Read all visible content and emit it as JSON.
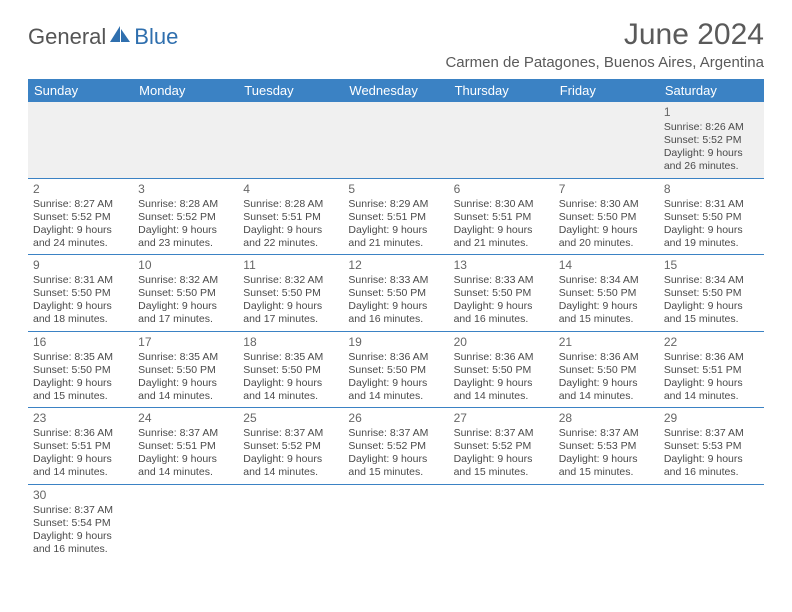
{
  "logo": {
    "text1": "General",
    "text2": "Blue"
  },
  "title": "June 2024",
  "subtitle": "Carmen de Patagones, Buenos Aires, Argentina",
  "colors": {
    "header_bg": "#3b82c4",
    "header_text": "#ffffff",
    "cell_border": "#3b82c4",
    "text": "#4a4a4a",
    "blank_bg": "#f0f0f0",
    "page_bg": "#ffffff"
  },
  "weekdays": [
    "Sunday",
    "Monday",
    "Tuesday",
    "Wednesday",
    "Thursday",
    "Friday",
    "Saturday"
  ],
  "weeks": [
    [
      null,
      null,
      null,
      null,
      null,
      null,
      {
        "day": "1",
        "sunrise": "Sunrise: 8:26 AM",
        "sunset": "Sunset: 5:52 PM",
        "daylight1": "Daylight: 9 hours",
        "daylight2": "and 26 minutes."
      }
    ],
    [
      {
        "day": "2",
        "sunrise": "Sunrise: 8:27 AM",
        "sunset": "Sunset: 5:52 PM",
        "daylight1": "Daylight: 9 hours",
        "daylight2": "and 24 minutes."
      },
      {
        "day": "3",
        "sunrise": "Sunrise: 8:28 AM",
        "sunset": "Sunset: 5:52 PM",
        "daylight1": "Daylight: 9 hours",
        "daylight2": "and 23 minutes."
      },
      {
        "day": "4",
        "sunrise": "Sunrise: 8:28 AM",
        "sunset": "Sunset: 5:51 PM",
        "daylight1": "Daylight: 9 hours",
        "daylight2": "and 22 minutes."
      },
      {
        "day": "5",
        "sunrise": "Sunrise: 8:29 AM",
        "sunset": "Sunset: 5:51 PM",
        "daylight1": "Daylight: 9 hours",
        "daylight2": "and 21 minutes."
      },
      {
        "day": "6",
        "sunrise": "Sunrise: 8:30 AM",
        "sunset": "Sunset: 5:51 PM",
        "daylight1": "Daylight: 9 hours",
        "daylight2": "and 21 minutes."
      },
      {
        "day": "7",
        "sunrise": "Sunrise: 8:30 AM",
        "sunset": "Sunset: 5:50 PM",
        "daylight1": "Daylight: 9 hours",
        "daylight2": "and 20 minutes."
      },
      {
        "day": "8",
        "sunrise": "Sunrise: 8:31 AM",
        "sunset": "Sunset: 5:50 PM",
        "daylight1": "Daylight: 9 hours",
        "daylight2": "and 19 minutes."
      }
    ],
    [
      {
        "day": "9",
        "sunrise": "Sunrise: 8:31 AM",
        "sunset": "Sunset: 5:50 PM",
        "daylight1": "Daylight: 9 hours",
        "daylight2": "and 18 minutes."
      },
      {
        "day": "10",
        "sunrise": "Sunrise: 8:32 AM",
        "sunset": "Sunset: 5:50 PM",
        "daylight1": "Daylight: 9 hours",
        "daylight2": "and 17 minutes."
      },
      {
        "day": "11",
        "sunrise": "Sunrise: 8:32 AM",
        "sunset": "Sunset: 5:50 PM",
        "daylight1": "Daylight: 9 hours",
        "daylight2": "and 17 minutes."
      },
      {
        "day": "12",
        "sunrise": "Sunrise: 8:33 AM",
        "sunset": "Sunset: 5:50 PM",
        "daylight1": "Daylight: 9 hours",
        "daylight2": "and 16 minutes."
      },
      {
        "day": "13",
        "sunrise": "Sunrise: 8:33 AM",
        "sunset": "Sunset: 5:50 PM",
        "daylight1": "Daylight: 9 hours",
        "daylight2": "and 16 minutes."
      },
      {
        "day": "14",
        "sunrise": "Sunrise: 8:34 AM",
        "sunset": "Sunset: 5:50 PM",
        "daylight1": "Daylight: 9 hours",
        "daylight2": "and 15 minutes."
      },
      {
        "day": "15",
        "sunrise": "Sunrise: 8:34 AM",
        "sunset": "Sunset: 5:50 PM",
        "daylight1": "Daylight: 9 hours",
        "daylight2": "and 15 minutes."
      }
    ],
    [
      {
        "day": "16",
        "sunrise": "Sunrise: 8:35 AM",
        "sunset": "Sunset: 5:50 PM",
        "daylight1": "Daylight: 9 hours",
        "daylight2": "and 15 minutes."
      },
      {
        "day": "17",
        "sunrise": "Sunrise: 8:35 AM",
        "sunset": "Sunset: 5:50 PM",
        "daylight1": "Daylight: 9 hours",
        "daylight2": "and 14 minutes."
      },
      {
        "day": "18",
        "sunrise": "Sunrise: 8:35 AM",
        "sunset": "Sunset: 5:50 PM",
        "daylight1": "Daylight: 9 hours",
        "daylight2": "and 14 minutes."
      },
      {
        "day": "19",
        "sunrise": "Sunrise: 8:36 AM",
        "sunset": "Sunset: 5:50 PM",
        "daylight1": "Daylight: 9 hours",
        "daylight2": "and 14 minutes."
      },
      {
        "day": "20",
        "sunrise": "Sunrise: 8:36 AM",
        "sunset": "Sunset: 5:50 PM",
        "daylight1": "Daylight: 9 hours",
        "daylight2": "and 14 minutes."
      },
      {
        "day": "21",
        "sunrise": "Sunrise: 8:36 AM",
        "sunset": "Sunset: 5:50 PM",
        "daylight1": "Daylight: 9 hours",
        "daylight2": "and 14 minutes."
      },
      {
        "day": "22",
        "sunrise": "Sunrise: 8:36 AM",
        "sunset": "Sunset: 5:51 PM",
        "daylight1": "Daylight: 9 hours",
        "daylight2": "and 14 minutes."
      }
    ],
    [
      {
        "day": "23",
        "sunrise": "Sunrise: 8:36 AM",
        "sunset": "Sunset: 5:51 PM",
        "daylight1": "Daylight: 9 hours",
        "daylight2": "and 14 minutes."
      },
      {
        "day": "24",
        "sunrise": "Sunrise: 8:37 AM",
        "sunset": "Sunset: 5:51 PM",
        "daylight1": "Daylight: 9 hours",
        "daylight2": "and 14 minutes."
      },
      {
        "day": "25",
        "sunrise": "Sunrise: 8:37 AM",
        "sunset": "Sunset: 5:52 PM",
        "daylight1": "Daylight: 9 hours",
        "daylight2": "and 14 minutes."
      },
      {
        "day": "26",
        "sunrise": "Sunrise: 8:37 AM",
        "sunset": "Sunset: 5:52 PM",
        "daylight1": "Daylight: 9 hours",
        "daylight2": "and 15 minutes."
      },
      {
        "day": "27",
        "sunrise": "Sunrise: 8:37 AM",
        "sunset": "Sunset: 5:52 PM",
        "daylight1": "Daylight: 9 hours",
        "daylight2": "and 15 minutes."
      },
      {
        "day": "28",
        "sunrise": "Sunrise: 8:37 AM",
        "sunset": "Sunset: 5:53 PM",
        "daylight1": "Daylight: 9 hours",
        "daylight2": "and 15 minutes."
      },
      {
        "day": "29",
        "sunrise": "Sunrise: 8:37 AM",
        "sunset": "Sunset: 5:53 PM",
        "daylight1": "Daylight: 9 hours",
        "daylight2": "and 16 minutes."
      }
    ],
    [
      {
        "day": "30",
        "sunrise": "Sunrise: 8:37 AM",
        "sunset": "Sunset: 5:54 PM",
        "daylight1": "Daylight: 9 hours",
        "daylight2": "and 16 minutes."
      },
      null,
      null,
      null,
      null,
      null,
      null
    ]
  ]
}
